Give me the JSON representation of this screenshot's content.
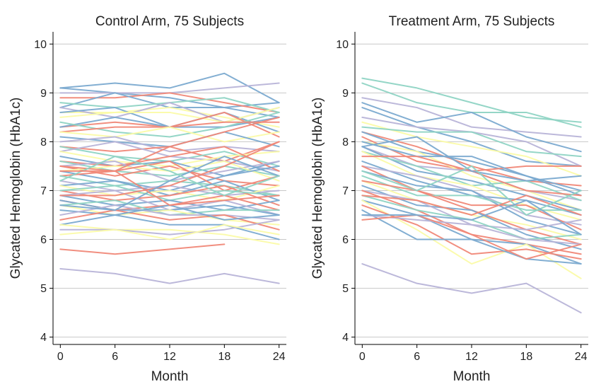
{
  "chart_data": [
    {
      "type": "line",
      "title": "Control Arm, 75 Subjects",
      "xlabel": "Month",
      "ylabel": "Glycated Hemoglobin (HbA1c)",
      "x": [
        0,
        6,
        12,
        18,
        24
      ],
      "xticks": [
        0,
        6,
        12,
        18,
        24
      ],
      "yticks": [
        4,
        5,
        6,
        7,
        8,
        9,
        10
      ],
      "xlim": [
        -0.8,
        24.8
      ],
      "ylim": [
        3.85,
        10.25
      ],
      "grid": "horizontal",
      "series": [
        {
          "color": "#7baad0",
          "values": [
            9.1,
            9.2,
            9.1,
            9.4,
            8.8
          ]
        },
        {
          "color": "#7baad0",
          "values": [
            9.1,
            9.0,
            8.9,
            8.7,
            8.8
          ]
        },
        {
          "color": "#b8b4d8",
          "values": [
            9.0,
            9.0,
            9.0,
            9.1,
            9.2
          ]
        },
        {
          "color": "#f08878",
          "values": [
            8.9,
            8.9,
            9.0,
            8.8,
            8.6
          ]
        },
        {
          "color": "#7baad0",
          "values": [
            8.7,
            9.0,
            8.7,
            8.7,
            8.5
          ]
        },
        {
          "color": "#8fd4c4",
          "values": [
            8.8,
            8.7,
            8.8,
            8.9,
            8.6
          ]
        },
        {
          "color": "#fbfba8",
          "values": [
            8.6,
            8.6,
            8.7,
            8.5,
            8.3
          ]
        },
        {
          "color": "#b8b4d8",
          "values": [
            8.7,
            8.5,
            8.8,
            8.4,
            8.7
          ]
        },
        {
          "color": "#7baad0",
          "values": [
            8.6,
            8.7,
            8.3,
            8.6,
            8.2
          ]
        },
        {
          "color": "#fbfba8",
          "values": [
            8.5,
            8.6,
            8.6,
            8.4,
            8.7
          ]
        },
        {
          "color": "#f08878",
          "values": [
            8.3,
            8.4,
            8.3,
            8.6,
            8.1
          ]
        },
        {
          "color": "#7baad0",
          "values": [
            8.3,
            8.5,
            8.3,
            8.3,
            8.5
          ]
        },
        {
          "color": "#8fd4c4",
          "values": [
            8.4,
            8.2,
            8.1,
            8.3,
            8.6
          ]
        },
        {
          "color": "#f08878",
          "values": [
            8.2,
            8.3,
            8.3,
            8.4,
            8.4
          ]
        },
        {
          "color": "#fbfba8",
          "values": [
            8.2,
            8.1,
            8.3,
            8.0,
            8.2
          ]
        },
        {
          "color": "#7baad0",
          "values": [
            8.1,
            8.0,
            7.9,
            8.2,
            7.9
          ]
        },
        {
          "color": "#b8b4d8",
          "values": [
            8.0,
            8.1,
            7.8,
            7.9,
            7.8
          ]
        },
        {
          "color": "#f08878",
          "values": [
            7.9,
            7.8,
            7.9,
            7.6,
            8.0
          ]
        },
        {
          "color": "#8fd4c4",
          "values": [
            7.9,
            7.7,
            7.6,
            7.8,
            7.5
          ]
        },
        {
          "color": "#b8b4d8",
          "values": [
            7.8,
            8.0,
            7.7,
            7.6,
            7.4
          ]
        },
        {
          "color": "#fbfba8",
          "values": [
            7.8,
            7.6,
            7.5,
            7.7,
            7.8
          ]
        },
        {
          "color": "#7baad0",
          "values": [
            7.7,
            7.5,
            7.6,
            7.3,
            7.6
          ]
        },
        {
          "color": "#f08878",
          "values": [
            7.6,
            7.5,
            7.7,
            7.9,
            7.4
          ]
        },
        {
          "color": "#8fd4c4",
          "values": [
            7.6,
            7.4,
            7.3,
            7.5,
            7.3
          ]
        },
        {
          "color": "#b8b4d8",
          "values": [
            7.5,
            7.6,
            7.2,
            7.4,
            7.6
          ]
        },
        {
          "color": "#f08878",
          "values": [
            7.5,
            7.3,
            7.5,
            7.2,
            7.1
          ]
        },
        {
          "color": "#fbfba8",
          "values": [
            7.4,
            7.5,
            7.4,
            7.6,
            7.2
          ]
        },
        {
          "color": "#7baad0",
          "values": [
            7.4,
            7.2,
            7.0,
            7.3,
            7.5
          ]
        },
        {
          "color": "#f08878",
          "values": [
            7.3,
            7.4,
            7.6,
            7.0,
            7.3
          ]
        },
        {
          "color": "#8fd4c4",
          "values": [
            7.3,
            7.1,
            7.2,
            7.1,
            6.9
          ]
        },
        {
          "color": "#b8b4d8",
          "values": [
            7.2,
            7.0,
            7.1,
            6.9,
            7.0
          ]
        },
        {
          "color": "#7baad0",
          "values": [
            7.1,
            7.2,
            6.9,
            7.2,
            6.8
          ]
        },
        {
          "color": "#fbfba8",
          "values": [
            7.1,
            6.9,
            7.0,
            6.8,
            7.1
          ]
        },
        {
          "color": "#f08878",
          "values": [
            7.0,
            6.8,
            6.9,
            7.1,
            6.7
          ]
        },
        {
          "color": "#8fd4c4",
          "values": [
            7.0,
            7.1,
            6.8,
            7.0,
            6.9
          ]
        },
        {
          "color": "#7baad0",
          "values": [
            6.9,
            6.7,
            6.8,
            6.6,
            6.8
          ]
        },
        {
          "color": "#b8b4d8",
          "values": [
            6.9,
            7.0,
            6.6,
            6.8,
            6.5
          ]
        },
        {
          "color": "#f08878",
          "values": [
            6.8,
            6.6,
            6.7,
            6.9,
            6.6
          ]
        },
        {
          "color": "#7baad0",
          "values": [
            6.8,
            6.6,
            6.6,
            6.7,
            6.5
          ]
        },
        {
          "color": "#8fd4c4",
          "values": [
            6.7,
            6.8,
            6.5,
            6.6,
            6.6
          ]
        },
        {
          "color": "#fbfba8",
          "values": [
            6.7,
            6.5,
            6.6,
            6.4,
            6.3
          ]
        },
        {
          "color": "#7baad0",
          "values": [
            6.6,
            6.5,
            6.3,
            6.3,
            6.0
          ]
        },
        {
          "color": "#b8b4d8",
          "values": [
            6.5,
            6.7,
            6.5,
            6.5,
            6.4
          ]
        },
        {
          "color": "#f08878",
          "values": [
            6.4,
            6.6,
            6.4,
            6.5,
            6.2
          ]
        },
        {
          "color": "#7baad0",
          "values": [
            6.3,
            6.5,
            6.7,
            6.4,
            6.5
          ]
        },
        {
          "color": "#fbfba8",
          "values": [
            6.3,
            6.2,
            6.2,
            6.1,
            5.9
          ]
        },
        {
          "color": "#b8b4d8",
          "values": [
            6.2,
            6.2,
            6.1,
            6.2,
            6.4
          ]
        },
        {
          "color": "#fbfba8",
          "values": [
            6.1,
            6.2,
            6.0,
            6.3,
            6.1
          ]
        },
        {
          "color": "#f08878",
          "values": [
            5.8,
            5.7,
            5.8,
            5.9,
            null
          ]
        },
        {
          "color": "#b8b4d8",
          "values": [
            5.4,
            5.3,
            5.1,
            5.3,
            5.1
          ]
        },
        {
          "color": "#f08878",
          "values": [
            7.5,
            7.4,
            7.9,
            8.2,
            8.5
          ]
        },
        {
          "color": "#f08878",
          "values": [
            6.9,
            6.9,
            7.1,
            7.5,
            8.0
          ]
        },
        {
          "color": "#7baad0",
          "values": [
            6.7,
            6.6,
            7.2,
            7.7,
            7.3
          ]
        },
        {
          "color": "#8fd4c4",
          "values": [
            7.2,
            7.7,
            7.4,
            6.9,
            7.3
          ]
        },
        {
          "color": "#f08878",
          "values": [
            7.4,
            7.4,
            6.7,
            6.8,
            6.9
          ]
        }
      ]
    },
    {
      "type": "line",
      "title": "Treatment Arm, 75 Subjects",
      "xlabel": "Month",
      "ylabel": "Glycated Hemoglobin (HbA1c)",
      "x": [
        0,
        6,
        12,
        18,
        24
      ],
      "xticks": [
        0,
        6,
        12,
        18,
        24
      ],
      "yticks": [
        4,
        5,
        6,
        7,
        8,
        9,
        10
      ],
      "xlim": [
        -0.8,
        24.8
      ],
      "ylim": [
        3.85,
        10.25
      ],
      "grid": "horizontal",
      "series": [
        {
          "color": "#8fd4c4",
          "values": [
            9.3,
            9.1,
            8.8,
            8.5,
            8.4
          ]
        },
        {
          "color": "#8fd4c4",
          "values": [
            9.2,
            8.8,
            8.6,
            8.6,
            8.3
          ]
        },
        {
          "color": "#b8b4d8",
          "values": [
            8.9,
            8.7,
            8.3,
            8.2,
            8.1
          ]
        },
        {
          "color": "#7baad0",
          "values": [
            8.8,
            8.4,
            8.6,
            8.1,
            7.8
          ]
        },
        {
          "color": "#7baad0",
          "values": [
            8.7,
            8.3,
            8.0,
            7.6,
            7.5
          ]
        },
        {
          "color": "#b8b4d8",
          "values": [
            8.5,
            8.3,
            8.2,
            8.0,
            7.5
          ]
        },
        {
          "color": "#fbfba8",
          "values": [
            8.4,
            8.1,
            7.9,
            7.7,
            7.3
          ]
        },
        {
          "color": "#8fd4c4",
          "values": [
            8.3,
            8.2,
            8.2,
            7.8,
            7.7
          ]
        },
        {
          "color": "#f08878",
          "values": [
            8.2,
            7.9,
            7.5,
            7.2,
            7.1
          ]
        },
        {
          "color": "#7baad0",
          "values": [
            8.2,
            7.8,
            7.6,
            7.3,
            6.9
          ]
        },
        {
          "color": "#f08878",
          "values": [
            8.1,
            7.6,
            7.4,
            7.5,
            7.5
          ]
        },
        {
          "color": "#fbfba8",
          "values": [
            8.0,
            7.8,
            7.3,
            7.0,
            6.6
          ]
        },
        {
          "color": "#7baad0",
          "values": [
            8.0,
            7.7,
            7.7,
            7.3,
            7.0
          ]
        },
        {
          "color": "#b8b4d8",
          "values": [
            7.9,
            7.5,
            7.4,
            7.0,
            6.8
          ]
        },
        {
          "color": "#7baad0",
          "values": [
            7.9,
            7.4,
            7.2,
            6.9,
            6.6
          ]
        },
        {
          "color": "#8fd4c4",
          "values": [
            7.8,
            7.5,
            7.1,
            7.2,
            6.8
          ]
        },
        {
          "color": "#fbfba8",
          "values": [
            7.8,
            7.3,
            7.1,
            6.7,
            6.4
          ]
        },
        {
          "color": "#f08878",
          "values": [
            7.7,
            7.7,
            7.4,
            7.0,
            6.9
          ]
        },
        {
          "color": "#7baad0",
          "values": [
            7.6,
            7.2,
            6.9,
            6.8,
            6.5
          ]
        },
        {
          "color": "#b8b4d8",
          "values": [
            7.5,
            7.3,
            7.0,
            6.5,
            6.3
          ]
        },
        {
          "color": "#f08878",
          "values": [
            7.5,
            7.0,
            6.7,
            6.7,
            6.2
          ]
        },
        {
          "color": "#7baad0",
          "values": [
            7.4,
            7.1,
            7.0,
            6.4,
            6.1
          ]
        },
        {
          "color": "#8fd4c4",
          "values": [
            7.3,
            6.9,
            6.9,
            6.6,
            6.6
          ]
        },
        {
          "color": "#fbfba8",
          "values": [
            7.2,
            6.8,
            6.5,
            6.3,
            6.0
          ]
        },
        {
          "color": "#f08878",
          "values": [
            7.2,
            7.0,
            6.6,
            6.2,
            5.9
          ]
        },
        {
          "color": "#7baad0",
          "values": [
            7.1,
            6.7,
            6.6,
            6.1,
            5.8
          ]
        },
        {
          "color": "#b8b4d8",
          "values": [
            7.0,
            6.8,
            6.3,
            6.2,
            6.4
          ]
        },
        {
          "color": "#f08878",
          "values": [
            7.0,
            6.6,
            6.1,
            5.9,
            5.7
          ]
        },
        {
          "color": "#8fd4c4",
          "values": [
            6.9,
            6.6,
            6.4,
            6.0,
            6.1
          ]
        },
        {
          "color": "#7baad0",
          "values": [
            6.8,
            6.5,
            6.0,
            5.9,
            5.5
          ]
        },
        {
          "color": "#fbfba8",
          "values": [
            6.8,
            6.2,
            5.5,
            5.9,
            5.2
          ]
        },
        {
          "color": "#f08878",
          "values": [
            6.7,
            6.3,
            5.7,
            5.8,
            5.6
          ]
        },
        {
          "color": "#7baad0",
          "values": [
            6.6,
            6.0,
            6.0,
            5.6,
            5.5
          ]
        },
        {
          "color": "#b8b4d8",
          "values": [
            6.5,
            6.4,
            6.3,
            6.0,
            5.9
          ]
        },
        {
          "color": "#f08878",
          "values": [
            6.4,
            6.5,
            6.1,
            5.6,
            5.9
          ]
        },
        {
          "color": "#b8b4d8",
          "values": [
            5.5,
            5.1,
            4.9,
            5.1,
            4.5
          ]
        },
        {
          "color": "#7baad0",
          "values": [
            7.9,
            8.1,
            7.4,
            7.2,
            7.3
          ]
        },
        {
          "color": "#f08878",
          "values": [
            6.9,
            6.8,
            6.5,
            6.9,
            6.5
          ]
        },
        {
          "color": "#8fd4c4",
          "values": [
            7.4,
            7.0,
            7.5,
            6.5,
            7.0
          ]
        },
        {
          "color": "#7baad0",
          "values": [
            6.5,
            6.5,
            6.4,
            6.8,
            6.1
          ]
        }
      ]
    }
  ]
}
